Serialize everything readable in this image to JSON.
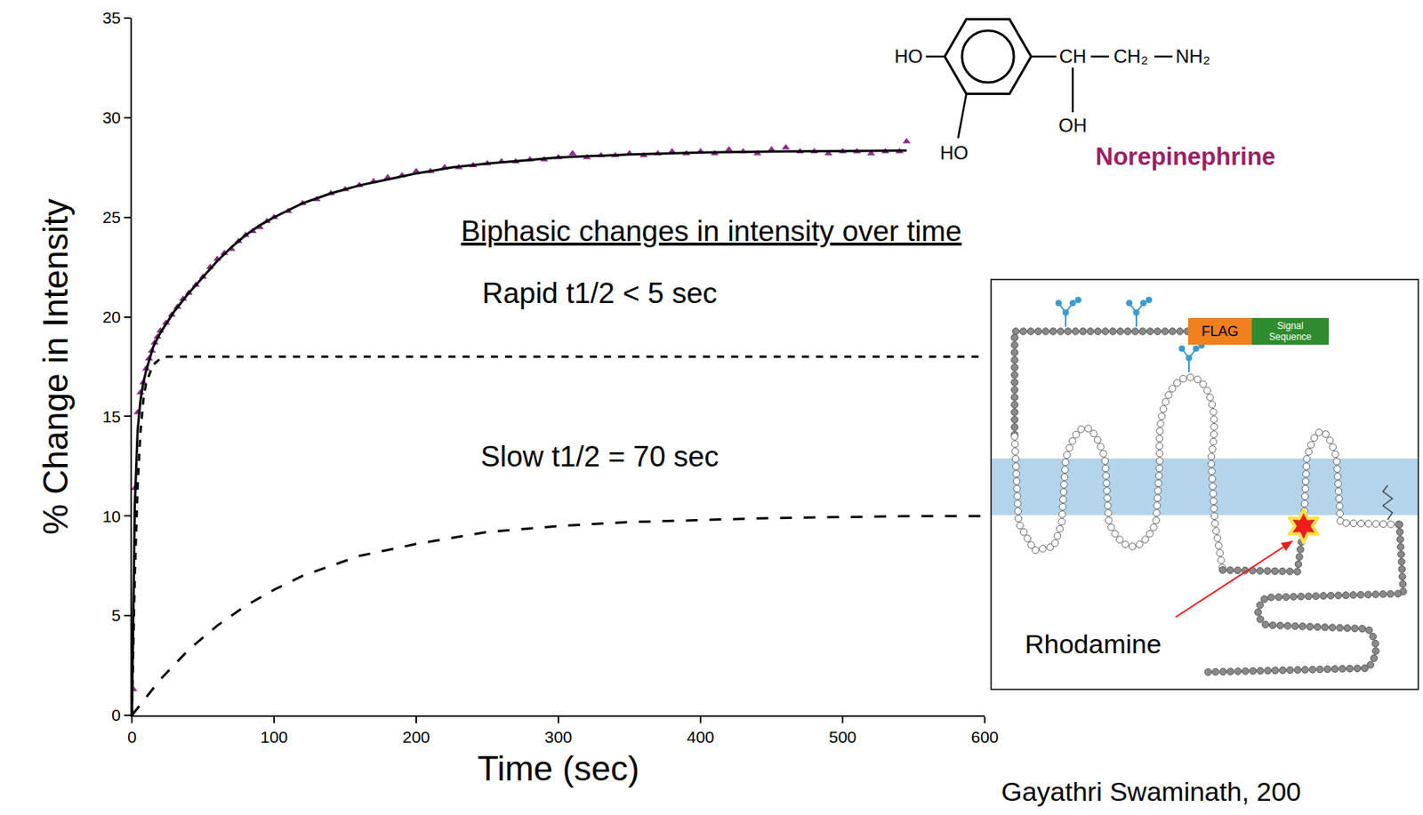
{
  "chart_data": {
    "type": "scatter",
    "xlabel": "Time (sec)",
    "ylabel": "% Change in Intensity",
    "xlim": [
      0,
      600
    ],
    "xticks": [
      0,
      100,
      200,
      300,
      400,
      500,
      600
    ],
    "ylim": [
      0,
      35
    ],
    "yticks": [
      0,
      5,
      10,
      15,
      20,
      25,
      30,
      35
    ],
    "grid": false,
    "annotations": [
      {
        "text": "Biphasic changes in intensity over time"
      },
      {
        "text": "Rapid t1/2 < 5 sec"
      },
      {
        "text": "Slow t1/2 = 70 sec"
      }
    ],
    "series": [
      {
        "type": "scatter",
        "marker": "triangle-up",
        "color": "#8e2c8e",
        "x": [
          1,
          2,
          4,
          6,
          8,
          10,
          12,
          14,
          16,
          18,
          20,
          24,
          28,
          32,
          36,
          40,
          45,
          50,
          55,
          60,
          65,
          70,
          75,
          80,
          85,
          90,
          95,
          100,
          110,
          120,
          130,
          140,
          150,
          160,
          170,
          180,
          190,
          200,
          210,
          220,
          230,
          240,
          250,
          260,
          270,
          280,
          290,
          300,
          310,
          320,
          330,
          340,
          350,
          360,
          370,
          380,
          390,
          400,
          410,
          420,
          430,
          440,
          450,
          460,
          470,
          480,
          490,
          500,
          510,
          520,
          530,
          540,
          545
        ],
        "values": [
          1.3,
          11.4,
          15.2,
          16.2,
          16.7,
          17.4,
          17.9,
          18.3,
          18.7,
          19.0,
          19.3,
          19.7,
          20.1,
          20.5,
          20.9,
          21.2,
          21.6,
          22.0,
          22.5,
          22.9,
          23.2,
          23.4,
          23.8,
          24.1,
          24.3,
          24.5,
          24.8,
          25.0,
          25.3,
          25.7,
          25.9,
          26.2,
          26.4,
          26.6,
          26.8,
          27.0,
          27.1,
          27.3,
          27.3,
          27.5,
          27.5,
          27.6,
          27.7,
          27.8,
          27.8,
          27.9,
          27.9,
          28.0,
          28.2,
          28.0,
          28.1,
          28.1,
          28.2,
          28.1,
          28.2,
          28.3,
          28.2,
          28.3,
          28.2,
          28.4,
          28.3,
          28.2,
          28.4,
          28.5,
          28.3,
          28.3,
          28.2,
          28.3,
          28.3,
          28.2,
          28.3,
          28.3,
          28.8
        ]
      },
      {
        "type": "line",
        "line_style": "solid",
        "color": "#000000",
        "x": [
          0,
          2,
          4,
          6,
          8,
          10,
          15,
          20,
          30,
          40,
          50,
          60,
          70,
          80,
          90,
          100,
          120,
          140,
          160,
          180,
          200,
          225,
          250,
          275,
          300,
          350,
          400,
          450,
          500,
          545
        ],
        "values": [
          0,
          10.5,
          14.3,
          15.8,
          16.7,
          17.3,
          18.5,
          19.2,
          20.3,
          21.2,
          22.0,
          22.8,
          23.5,
          24.1,
          24.6,
          25.0,
          25.7,
          26.2,
          26.6,
          26.9,
          27.2,
          27.5,
          27.7,
          27.85,
          28.0,
          28.15,
          28.25,
          28.3,
          28.33,
          28.35
        ]
      },
      {
        "type": "line",
        "line_style": "dash",
        "color": "#000000",
        "x": [
          0,
          2,
          4,
          6,
          8,
          10,
          15,
          20,
          25,
          30,
          40,
          100,
          200,
          300,
          400,
          500,
          600
        ],
        "values": [
          0,
          7.0,
          11.5,
          14.2,
          15.8,
          16.7,
          17.6,
          17.9,
          18.0,
          18.0,
          18.0,
          18,
          18,
          18,
          18,
          18,
          18
        ]
      },
      {
        "type": "line",
        "line_style": "longdash",
        "color": "#000000",
        "x": [
          0,
          20,
          40,
          60,
          80,
          100,
          120,
          140,
          160,
          180,
          200,
          250,
          300,
          350,
          400,
          450,
          500,
          550,
          600
        ],
        "values": [
          0,
          1.8,
          3.3,
          4.5,
          5.5,
          6.3,
          7.0,
          7.5,
          8.0,
          8.3,
          8.6,
          9.2,
          9.5,
          9.7,
          9.8,
          9.9,
          9.95,
          10.0,
          10.0
        ]
      }
    ]
  },
  "structure": {
    "name": "Norepinephrine",
    "ring_substituents": [
      "HO",
      "HO"
    ],
    "side_chain": [
      "CH",
      "CH₂",
      "NH₂"
    ],
    "side_chain_substituent": "OH"
  },
  "inset": {
    "flag": "FLAG",
    "signal": "Signal Sequence",
    "fluorophore": "Rhodamine"
  },
  "credit": "Gayathri Swaminath, 200"
}
